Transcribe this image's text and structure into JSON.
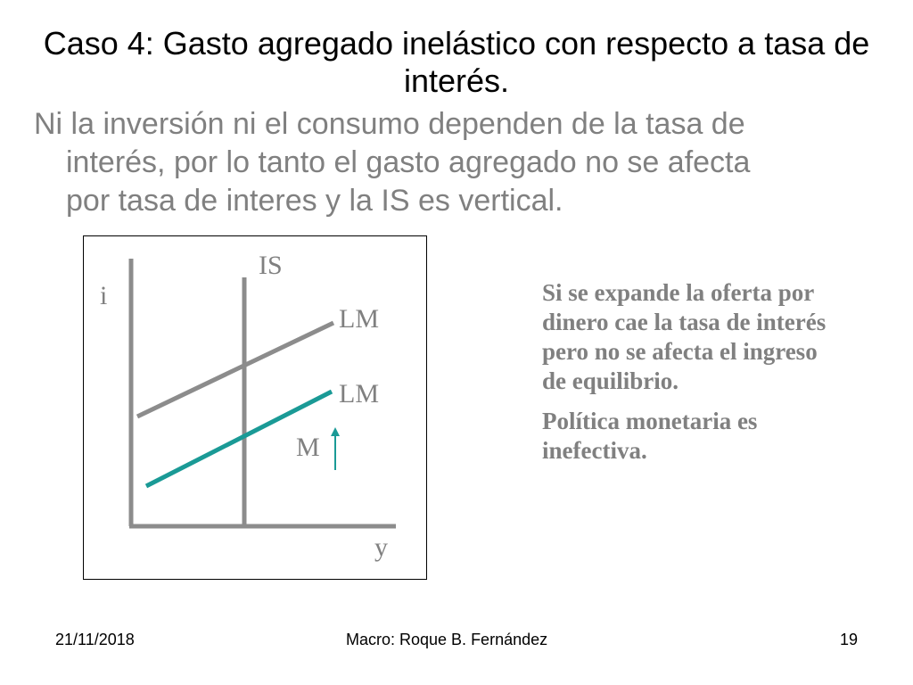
{
  "slide": {
    "title": "Caso 4: Gasto agregado inelástico con respecto a tasa de interés.",
    "bullet": {
      "line1": "Ni la inversión ni el consumo dependen de la tasa de",
      "line2": "interés, por lo tanto el gasto agregado no se afecta",
      "line3": "por tasa de interes y la IS es vertical."
    },
    "diagram": {
      "y_axis_label": "i",
      "x_axis_label": "y",
      "is_label": "IS",
      "lm_label_1": "LM",
      "lm_label_2": "LM",
      "m_label": "M",
      "colors": {
        "axes": "#8c8c8c",
        "is": "#8c8c8c",
        "lm_initial": "#8c8c8c",
        "lm_shifted": "#1a9a96",
        "arrow": "#1a9a96"
      }
    },
    "side_text": {
      "paragraph1": "Si se expande la oferta por dinero cae la tasa de interés pero no se afecta el ingreso de equilibrio.",
      "paragraph2": "Política monetaria es inefectiva."
    },
    "footer": {
      "date": "21/11/2018",
      "author": "Macro: Roque B. Fernández",
      "page_number": "19"
    }
  }
}
